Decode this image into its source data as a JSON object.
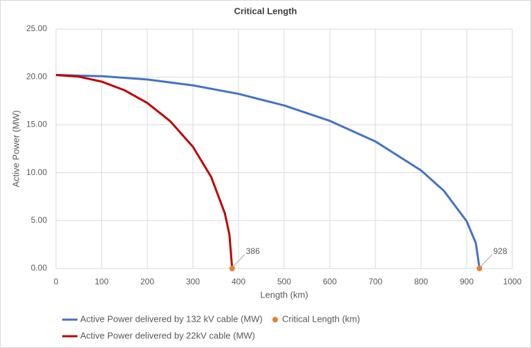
{
  "chart_data": {
    "type": "line",
    "title": "Critical Length",
    "x_label": "Length (km)",
    "y_label": "Active Power (MW)",
    "xlim": [
      0,
      1000
    ],
    "xticks": [
      0,
      100,
      200,
      300,
      400,
      500,
      600,
      700,
      800,
      900,
      1000
    ],
    "ylim": [
      0,
      25
    ],
    "yticks": [
      {
        "value": 0,
        "label": "0.00"
      },
      {
        "value": 5,
        "label": "5.00"
      },
      {
        "value": 10,
        "label": "10.00"
      },
      {
        "value": 15,
        "label": "15.00"
      },
      {
        "value": 20,
        "label": "20.00"
      },
      {
        "value": 25,
        "label": "25.00"
      }
    ],
    "grid": true,
    "legend": "bottom",
    "series": [
      {
        "name": "Active Power delivered by 132 kV cable (MW)",
        "type": "line",
        "color": "#4472c4",
        "x": [
          0,
          100,
          200,
          300,
          400,
          500,
          600,
          700,
          800,
          850,
          900,
          920,
          928
        ],
        "values": [
          20.2,
          20.08,
          19.73,
          19.12,
          18.23,
          17.02,
          15.41,
          13.26,
          10.24,
          8.11,
          4.92,
          2.65,
          0
        ]
      },
      {
        "name": "Active Power delivered by 22kV cable (MW)",
        "type": "line",
        "color": "#c00000",
        "x": [
          0,
          50,
          100,
          150,
          200,
          250,
          300,
          340,
          370,
          380,
          386
        ],
        "values": [
          20.2,
          20.03,
          19.51,
          18.61,
          17.28,
          15.39,
          12.71,
          9.56,
          5.76,
          3.55,
          0
        ]
      },
      {
        "name": "Critical Length (km)",
        "type": "scatter",
        "color": "#ed7d31",
        "x": [
          386,
          928
        ],
        "values": [
          0,
          0
        ]
      }
    ]
  }
}
